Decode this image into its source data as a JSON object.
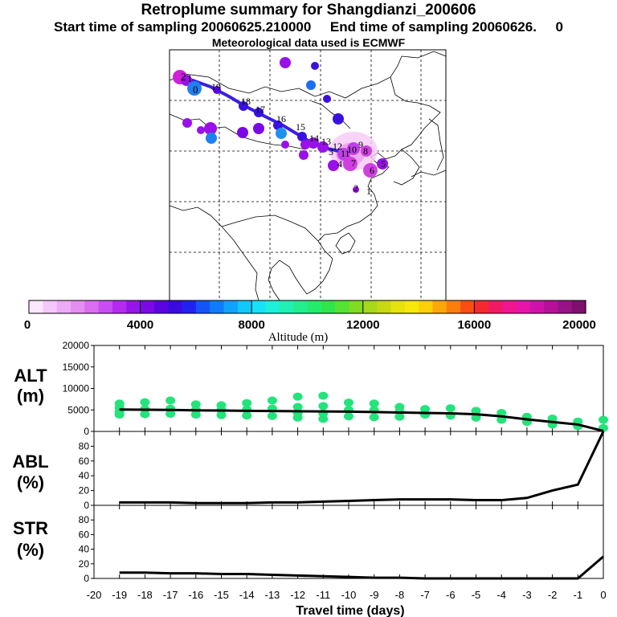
{
  "header": {
    "title": "Retroplume summary for Shangdianzi_200606",
    "subtitle": "Start time of sampling 20060625.210000     End time of sampling 20060626.     0",
    "met_line": "Meteorological data used is ECMWF"
  },
  "colorbar": {
    "ticks": [
      "0",
      "4000",
      "8000",
      "12000",
      "16000",
      "20000"
    ],
    "label": "Altitude  (m)",
    "colors": [
      "#fde7ff",
      "#f5c8fb",
      "#ecacf6",
      "#e58ef2",
      "#d96ef0",
      "#c94ef2",
      "#b32bf0",
      "#9615ea",
      "#7a09e6",
      "#5a04df",
      "#3a0be0",
      "#2222f0",
      "#1555f7",
      "#0f7cfa",
      "#10a3fb",
      "#12c7fb",
      "#18e2f8",
      "#1ef0da",
      "#20f0b4",
      "#22ee8e",
      "#22ec6a",
      "#2ee64c",
      "#56e232",
      "#7fdc22",
      "#a6d81b",
      "#c8d812",
      "#e6e20e",
      "#f6e80a",
      "#fdd10a",
      "#fca80a",
      "#fb7e0c",
      "#fa4e12",
      "#f52a2e",
      "#f11a62",
      "#ef1690",
      "#e615aa",
      "#d013a8",
      "#b41198",
      "#981386",
      "#7d106e"
    ]
  },
  "map": {
    "trajectory_labels": [
      "2",
      "1",
      "0"
    ],
    "cluster_labels": [
      "19",
      "18",
      "17",
      "16",
      "15",
      "14",
      "13",
      "12",
      "11",
      "10",
      "9",
      "8",
      "7",
      "6",
      "5",
      "4",
      "3",
      "2",
      "1"
    ]
  },
  "chart_data": [
    {
      "type": "line",
      "title": "ALT (m)",
      "ylabel": "ALT (m)",
      "xlabel": "Travel time (days)",
      "xlim": [
        -20,
        0
      ],
      "ylim": [
        0,
        20000
      ],
      "yticks": [
        0,
        5000,
        10000,
        15000,
        20000
      ],
      "x": [
        -19,
        -18,
        -17,
        -16,
        -15,
        -14,
        -13,
        -12,
        -11,
        -10,
        -9,
        -8,
        -7,
        -6,
        -5,
        -4,
        -3,
        -2,
        -1,
        0
      ],
      "values": [
        5100,
        5050,
        5000,
        4900,
        4850,
        4800,
        4750,
        4700,
        4650,
        4600,
        4500,
        4400,
        4300,
        4200,
        4000,
        3500,
        2800,
        2200,
        1600,
        100
      ],
      "scatter": {
        "x": [
          -19,
          -19,
          -19,
          -19,
          -18,
          -18,
          -18,
          -17,
          -17,
          -17,
          -16,
          -16,
          -16,
          -15,
          -15,
          -15,
          -14,
          -14,
          -14,
          -13,
          -13,
          -13,
          -12,
          -12,
          -12,
          -12,
          -11,
          -11,
          -11,
          -11,
          -10,
          -10,
          -10,
          -9,
          -9,
          -9,
          -8,
          -8,
          -8,
          -7,
          -7,
          -6,
          -6,
          -5,
          -5,
          -4,
          -4,
          -3,
          -3,
          -2,
          -2,
          -1,
          -1,
          0,
          0
        ],
        "y": [
          6500,
          5500,
          4600,
          3900,
          6800,
          5200,
          4000,
          7200,
          5300,
          4100,
          6300,
          5000,
          3900,
          6100,
          5000,
          3800,
          6600,
          5100,
          3700,
          7200,
          5300,
          3600,
          8100,
          5700,
          4300,
          3200,
          8300,
          5900,
          4200,
          2900,
          6700,
          5000,
          3500,
          6500,
          5000,
          3300,
          5700,
          4600,
          3400,
          5200,
          3900,
          5400,
          3700,
          4800,
          3200,
          4300,
          2700,
          3400,
          2200,
          3000,
          1600,
          2300,
          1200,
          2700,
          800
        ]
      }
    },
    {
      "type": "line",
      "title": "ABL (%)",
      "ylabel": "ABL (%)",
      "xlim": [
        -20,
        0
      ],
      "ylim": [
        0,
        100
      ],
      "yticks": [
        0,
        20,
        40,
        60,
        80
      ],
      "x": [
        -19,
        -18,
        -17,
        -16,
        -15,
        -14,
        -13,
        -12,
        -11,
        -10,
        -9,
        -8,
        -7,
        -6,
        -5,
        -4,
        -3,
        -2,
        -1,
        0
      ],
      "values": [
        4,
        4,
        4,
        3,
        3,
        3,
        4,
        4,
        5,
        6,
        7,
        8,
        8,
        8,
        7,
        7,
        10,
        20,
        28,
        100
      ]
    },
    {
      "type": "line",
      "title": "STR (%)",
      "ylabel": "STR (%)",
      "xlabel": "Travel time (days)",
      "xlim": [
        -20,
        0
      ],
      "ylim": [
        0,
        100
      ],
      "yticks": [
        0,
        20,
        40,
        60,
        80
      ],
      "xticks": [
        -20,
        -19,
        -18,
        -17,
        -16,
        -15,
        -14,
        -13,
        -12,
        -11,
        -10,
        -9,
        -8,
        -7,
        -6,
        -5,
        -4,
        -3,
        -2,
        -1,
        0
      ],
      "values": [
        8,
        8,
        7,
        7,
        6,
        6,
        5,
        4,
        3,
        2,
        1,
        1,
        0,
        0,
        0,
        0,
        0,
        0,
        0,
        30
      ]
    }
  ],
  "panels": {
    "alt": {
      "label1": "ALT",
      "label2": "(m)"
    },
    "abl": {
      "label1": "ABL",
      "label2": "(%)"
    },
    "str": {
      "label1": "STR",
      "label2": "(%)"
    },
    "xlabel": "Travel time (days)"
  }
}
